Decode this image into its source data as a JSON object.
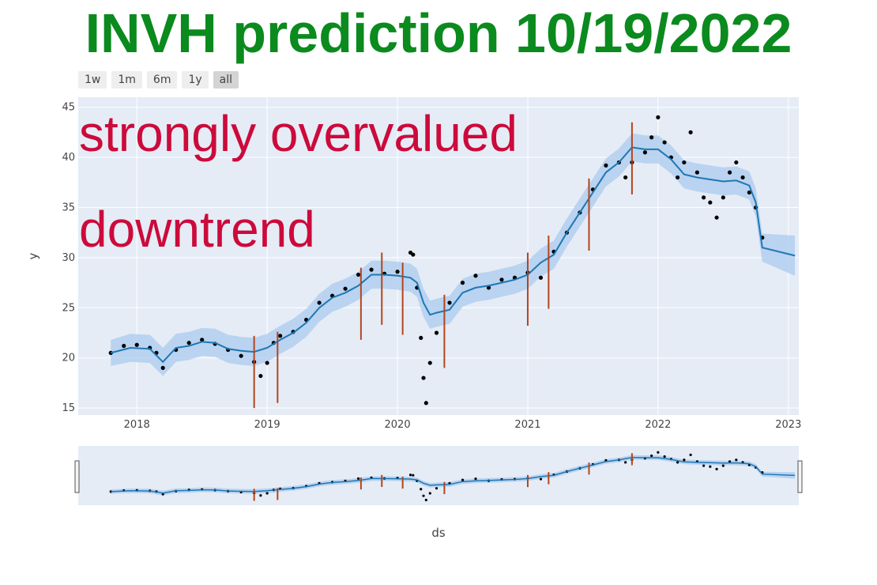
{
  "title": "INVH prediction 10/19/2022",
  "range_selector": [
    {
      "label": "1w",
      "active": false
    },
    {
      "label": "1m",
      "active": false
    },
    {
      "label": "6m",
      "active": false
    },
    {
      "label": "1y",
      "active": false
    },
    {
      "label": "all",
      "active": true
    }
  ],
  "annotations": [
    "strongly overvalued",
    "downtrend"
  ],
  "colors": {
    "plot_bg": "#e5ecf6",
    "grid": "#ffffff",
    "forecast_line": "#1f77b4",
    "band": "#a9cbee",
    "actual_points": "#000000",
    "changepoints": "#b5451b",
    "title": "#0b8a1e",
    "annotation": "#cc0a3b"
  },
  "chart_data": {
    "type": "line",
    "xlabel": "ds",
    "ylabel": "y",
    "xlim": [
      2017.55,
      2023.08
    ],
    "ylim": [
      14.3,
      46
    ],
    "x_ticks": [
      2018,
      2019,
      2020,
      2021,
      2022,
      2023
    ],
    "x_tick_labels": [
      "2018",
      "2019",
      "2020",
      "2021",
      "2022",
      "2023"
    ],
    "y_ticks": [
      15,
      20,
      25,
      30,
      35,
      40,
      45
    ],
    "y_tick_labels": [
      "15",
      "20",
      "25",
      "30",
      "35",
      "40",
      "45"
    ],
    "grid": true,
    "series": [
      {
        "kind": "forecast",
        "x": [
          2017.8,
          2017.95,
          2018.1,
          2018.2,
          2018.3,
          2018.4,
          2018.5,
          2018.6,
          2018.7,
          2018.8,
          2018.9,
          2019.0,
          2019.1,
          2019.2,
          2019.3,
          2019.4,
          2019.5,
          2019.6,
          2019.7,
          2019.8,
          2019.9,
          2020.0,
          2020.1,
          2020.15,
          2020.2,
          2020.25,
          2020.3,
          2020.4,
          2020.5,
          2020.6,
          2020.7,
          2020.8,
          2020.9,
          2021.0,
          2021.1,
          2021.2,
          2021.3,
          2021.4,
          2021.5,
          2021.6,
          2021.7,
          2021.8,
          2021.9,
          2022.0,
          2022.1,
          2022.2,
          2022.3,
          2022.4,
          2022.5,
          2022.6,
          2022.7,
          2022.75,
          2022.8,
          2023.05
        ],
        "y": [
          20.5,
          21.0,
          20.9,
          19.6,
          21.0,
          21.2,
          21.6,
          21.5,
          20.9,
          20.7,
          20.6,
          21.0,
          21.8,
          22.5,
          23.5,
          25.0,
          26.0,
          26.5,
          27.2,
          28.3,
          28.3,
          28.2,
          28.0,
          27.5,
          25.5,
          24.3,
          24.5,
          24.8,
          26.5,
          27.0,
          27.2,
          27.5,
          27.8,
          28.3,
          29.5,
          30.3,
          32.5,
          34.5,
          36.5,
          38.5,
          39.5,
          41.0,
          40.8,
          40.8,
          39.8,
          38.3,
          38.0,
          37.8,
          37.6,
          37.7,
          37.2,
          35.5,
          31.0,
          30.2
        ]
      },
      {
        "kind": "uncertainty_band",
        "x": [
          2017.8,
          2017.95,
          2018.1,
          2018.2,
          2018.3,
          2018.4,
          2018.5,
          2018.6,
          2018.7,
          2018.8,
          2018.9,
          2019.0,
          2019.1,
          2019.2,
          2019.3,
          2019.4,
          2019.5,
          2019.6,
          2019.7,
          2019.8,
          2019.9,
          2020.0,
          2020.1,
          2020.15,
          2020.2,
          2020.25,
          2020.3,
          2020.4,
          2020.5,
          2020.6,
          2020.7,
          2020.8,
          2020.9,
          2021.0,
          2021.1,
          2021.2,
          2021.3,
          2021.4,
          2021.5,
          2021.6,
          2021.7,
          2021.8,
          2021.9,
          2022.0,
          2022.1,
          2022.2,
          2022.3,
          2022.4,
          2022.5,
          2022.6,
          2022.7,
          2022.75,
          2022.8,
          2023.05
        ],
        "y_lower": [
          19.2,
          19.6,
          19.5,
          18.2,
          19.6,
          19.8,
          20.2,
          20.1,
          19.5,
          19.3,
          19.2,
          19.6,
          20.4,
          21.1,
          22.1,
          23.6,
          24.6,
          25.1,
          25.8,
          26.9,
          26.9,
          26.8,
          26.6,
          26.1,
          24.1,
          22.9,
          23.1,
          23.4,
          25.1,
          25.6,
          25.8,
          26.1,
          26.4,
          26.9,
          28.1,
          28.9,
          31.1,
          33.1,
          35.1,
          37.1,
          38.1,
          39.6,
          39.4,
          39.4,
          38.4,
          36.9,
          36.6,
          36.4,
          36.2,
          36.3,
          35.8,
          34.1,
          29.6,
          28.2
        ],
        "y_upper": [
          21.8,
          22.4,
          22.3,
          21.0,
          22.4,
          22.6,
          23.0,
          22.9,
          22.3,
          22.1,
          22.0,
          22.4,
          23.2,
          23.9,
          24.9,
          26.4,
          27.4,
          27.9,
          28.6,
          29.7,
          29.7,
          29.6,
          29.4,
          28.9,
          26.9,
          25.7,
          25.9,
          26.2,
          27.9,
          28.4,
          28.6,
          28.9,
          29.2,
          29.7,
          30.9,
          31.7,
          33.9,
          35.9,
          37.9,
          39.9,
          40.9,
          42.4,
          42.2,
          42.2,
          41.2,
          39.7,
          39.4,
          39.2,
          39.0,
          39.1,
          38.6,
          36.9,
          32.4,
          32.2
        ]
      },
      {
        "kind": "actual",
        "x": [
          2017.8,
          2017.9,
          2018.0,
          2018.1,
          2018.15,
          2018.2,
          2018.3,
          2018.4,
          2018.5,
          2018.6,
          2018.7,
          2018.8,
          2018.9,
          2018.95,
          2019.0,
          2019.05,
          2019.1,
          2019.2,
          2019.3,
          2019.4,
          2019.5,
          2019.6,
          2019.7,
          2019.8,
          2019.9,
          2020.0,
          2020.1,
          2020.12,
          2020.15,
          2020.18,
          2020.2,
          2020.22,
          2020.25,
          2020.3,
          2020.4,
          2020.5,
          2020.6,
          2020.7,
          2020.8,
          2020.9,
          2021.0,
          2021.1,
          2021.2,
          2021.3,
          2021.4,
          2021.5,
          2021.6,
          2021.7,
          2021.75,
          2021.8,
          2021.9,
          2021.95,
          2022.0,
          2022.05,
          2022.1,
          2022.15,
          2022.2,
          2022.25,
          2022.3,
          2022.35,
          2022.4,
          2022.45,
          2022.5,
          2022.55,
          2022.6,
          2022.65,
          2022.7,
          2022.75,
          2022.8
        ],
        "y": [
          20.5,
          21.2,
          21.3,
          21.0,
          20.5,
          19.0,
          20.8,
          21.5,
          21.8,
          21.4,
          20.8,
          20.2,
          19.6,
          18.2,
          19.5,
          21.5,
          22.2,
          22.6,
          23.8,
          25.5,
          26.2,
          26.9,
          28.3,
          28.8,
          28.4,
          28.6,
          30.5,
          30.3,
          27.0,
          22.0,
          18.0,
          15.5,
          19.5,
          22.5,
          25.5,
          27.5,
          28.2,
          27.0,
          27.8,
          28.0,
          28.5,
          28.0,
          30.6,
          32.5,
          34.5,
          36.8,
          39.2,
          39.5,
          38.0,
          39.5,
          40.5,
          42.0,
          44.0,
          41.5,
          40.0,
          38.0,
          39.5,
          42.5,
          38.5,
          36.0,
          35.5,
          34.0,
          36.0,
          38.5,
          39.5,
          38.0,
          36.5,
          35.0,
          32.0
        ]
      }
    ],
    "changepoints": [
      {
        "x": 2018.9,
        "y0": 15.0,
        "y1": 22.2
      },
      {
        "x": 2019.08,
        "y0": 15.5,
        "y1": 22.6
      },
      {
        "x": 2019.72,
        "y0": 21.8,
        "y1": 29.0
      },
      {
        "x": 2019.88,
        "y0": 23.3,
        "y1": 30.5
      },
      {
        "x": 2020.04,
        "y0": 22.3,
        "y1": 29.5
      },
      {
        "x": 2020.36,
        "y0": 19.0,
        "y1": 26.3
      },
      {
        "x": 2021.0,
        "y0": 23.2,
        "y1": 30.5
      },
      {
        "x": 2021.16,
        "y0": 24.9,
        "y1": 32.2
      },
      {
        "x": 2021.47,
        "y0": 30.7,
        "y1": 37.9
      },
      {
        "x": 2021.8,
        "y0": 36.3,
        "y1": 43.5
      }
    ]
  }
}
